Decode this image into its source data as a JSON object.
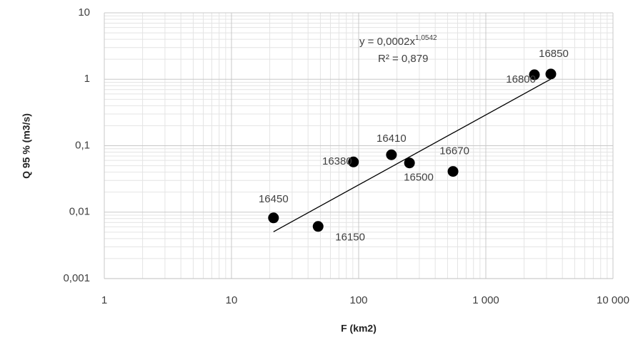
{
  "chart_data": {
    "type": "scatter",
    "x_label": "F (km2)",
    "y_label": "Q 95 %  (m3/s)",
    "x_log": true,
    "y_log": true,
    "grid": true,
    "minor_grid": true,
    "color": "#000000",
    "xlim": [
      1,
      10000
    ],
    "ylim": [
      0.001,
      10
    ],
    "xticks": [
      1,
      10,
      100,
      {
        "value": 1000,
        "label": "1 000"
      },
      {
        "value": 10000,
        "label": "10 000"
      }
    ],
    "yticks": [
      {
        "value": 0.001,
        "label": "0,001"
      },
      {
        "value": 0.01,
        "label": "0,01"
      },
      {
        "value": 0.1,
        "label": "0,1"
      },
      1,
      10
    ],
    "point_labels": [
      "16450",
      "16150",
      "16380",
      "16410",
      "16500",
      "16670",
      "16800",
      "16850"
    ],
    "x": [
      21.4,
      48,
      91,
      181,
      251,
      552,
      2410,
      3245
    ],
    "values": [
      0.0082,
      0.0061,
      0.057,
      0.073,
      0.055,
      0.041,
      1.17,
      1.2
    ],
    "trendline": {
      "x": [
        21.4,
        3245
      ],
      "values": [
        0.00506,
        1.006
      ],
      "equation": "y = 0,0002x",
      "exponent": "1,0542",
      "r2": "R² = 0,879"
    }
  }
}
